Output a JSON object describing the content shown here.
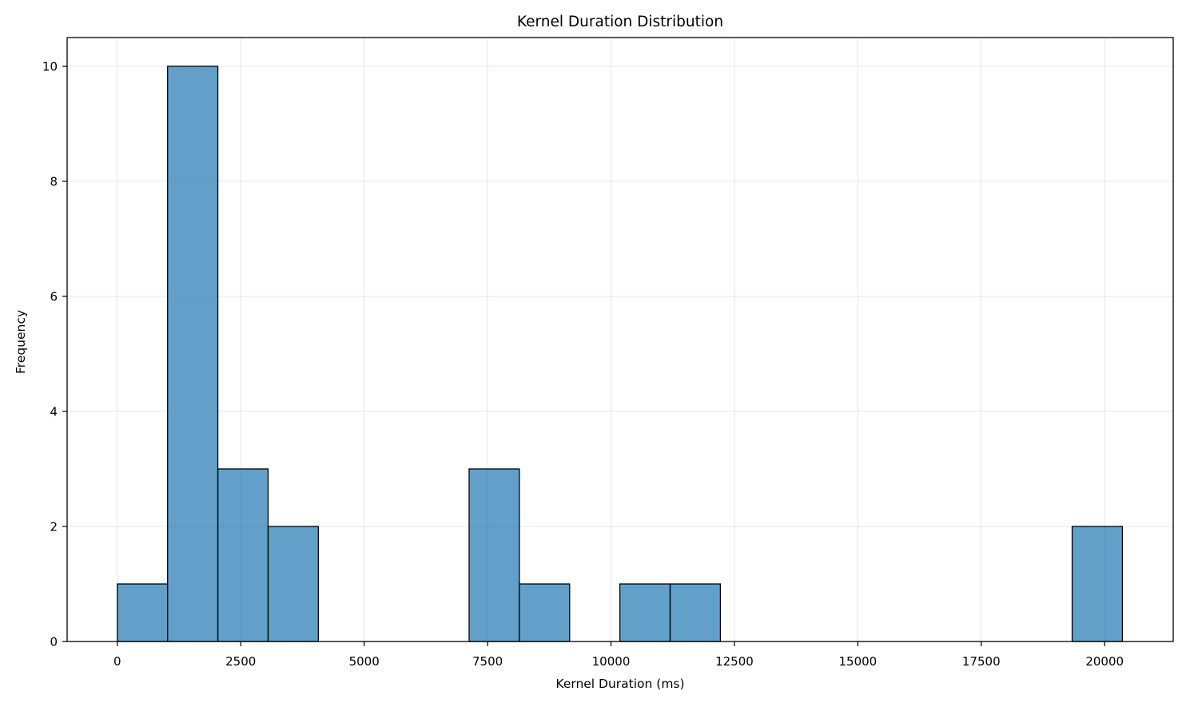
{
  "chart_data": {
    "type": "bar",
    "title": "Kernel Duration Distribution",
    "xlabel": "Kernel Duration (ms)",
    "ylabel": "Frequency",
    "xlim": [
      -1017,
      21389
    ],
    "ylim": [
      0,
      10.5
    ],
    "xticks": [
      0,
      2500,
      5000,
      7500,
      10000,
      12500,
      15000,
      17500,
      20000
    ],
    "yticks": [
      0,
      2,
      4,
      6,
      8,
      10
    ],
    "grid": true,
    "legend": "none",
    "bar_color": "#1f77b4",
    "bar_alpha": 0.7,
    "edge_color": "#000000",
    "bins": [
      {
        "x0": 0,
        "x1": 1018,
        "count": 1
      },
      {
        "x0": 1018,
        "x1": 2036,
        "count": 10
      },
      {
        "x0": 2036,
        "x1": 3054,
        "count": 3
      },
      {
        "x0": 3054,
        "x1": 4072,
        "count": 2
      },
      {
        "x0": 4072,
        "x1": 5090,
        "count": 0
      },
      {
        "x0": 5090,
        "x1": 6108,
        "count": 0
      },
      {
        "x0": 6108,
        "x1": 7126,
        "count": 0
      },
      {
        "x0": 7126,
        "x1": 8144,
        "count": 3
      },
      {
        "x0": 8144,
        "x1": 9162,
        "count": 1
      },
      {
        "x0": 9162,
        "x1": 10180,
        "count": 0
      },
      {
        "x0": 10180,
        "x1": 11198,
        "count": 1
      },
      {
        "x0": 11198,
        "x1": 12216,
        "count": 1
      },
      {
        "x0": 12216,
        "x1": 13234,
        "count": 0
      },
      {
        "x0": 13234,
        "x1": 14252,
        "count": 0
      },
      {
        "x0": 14252,
        "x1": 15270,
        "count": 0
      },
      {
        "x0": 15270,
        "x1": 16288,
        "count": 0
      },
      {
        "x0": 16288,
        "x1": 17306,
        "count": 0
      },
      {
        "x0": 17306,
        "x1": 18324,
        "count": 0
      },
      {
        "x0": 18324,
        "x1": 19342,
        "count": 0
      },
      {
        "x0": 19342,
        "x1": 20360,
        "count": 2
      }
    ]
  }
}
